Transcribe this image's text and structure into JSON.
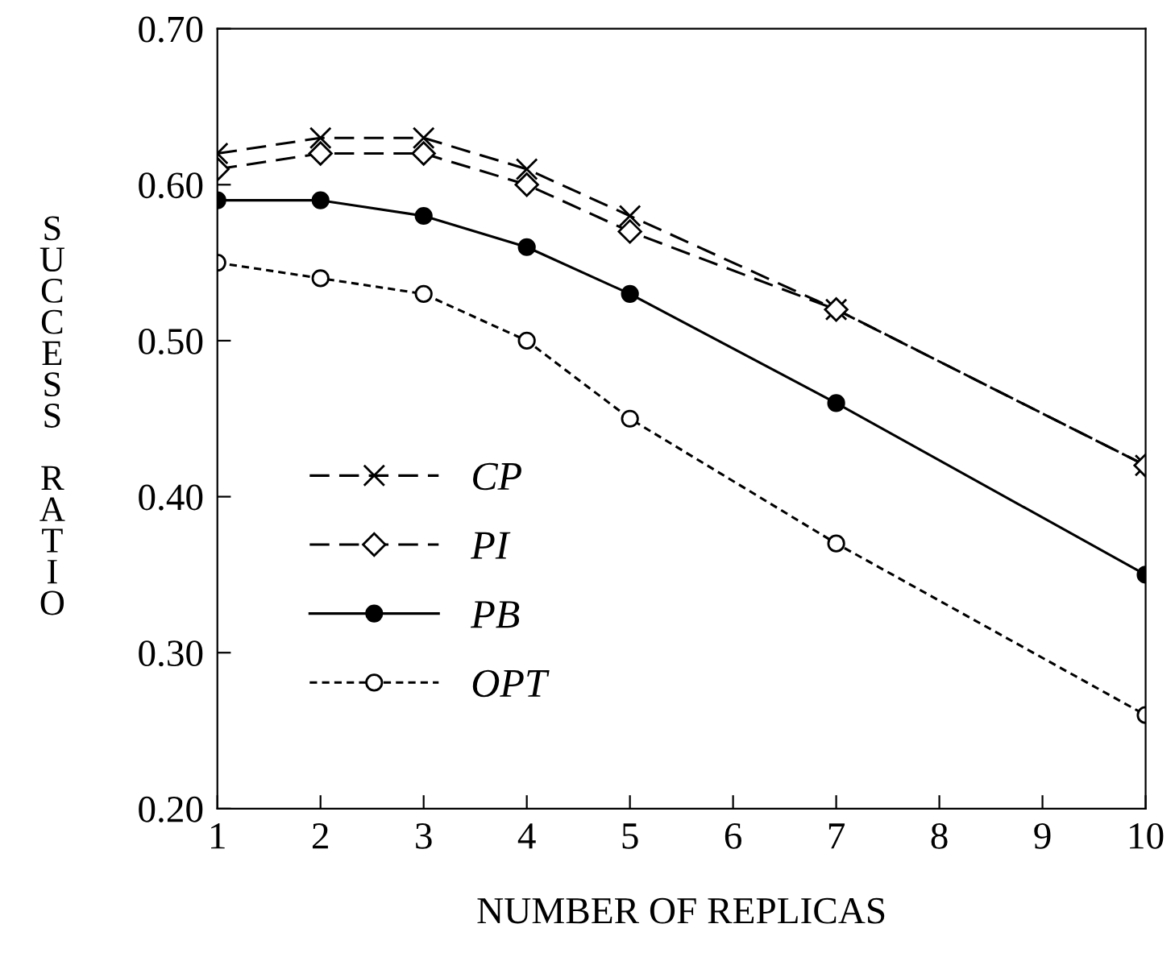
{
  "chart_data": {
    "type": "line",
    "xlabel": "NUMBER OF REPLICAS",
    "ylabel": "SUCCESS RATIO",
    "xlim": [
      1,
      10
    ],
    "xticks": [
      1,
      2,
      3,
      4,
      5,
      6,
      7,
      8,
      9,
      10
    ],
    "ylim": [
      0.2,
      0.7
    ],
    "yticks": [
      {
        "value": 0.2,
        "label": "0.20"
      },
      {
        "value": 0.3,
        "label": "0.30"
      },
      {
        "value": 0.4,
        "label": "0.40"
      },
      {
        "value": 0.5,
        "label": "0.50"
      },
      {
        "value": 0.6,
        "label": "0.60"
      },
      {
        "value": 0.7,
        "label": "0.70"
      }
    ],
    "x": [
      1,
      2,
      3,
      4,
      5,
      7,
      10
    ],
    "series": [
      {
        "name": "CP",
        "color": "#000000",
        "marker": "cross",
        "line_style": "dashed",
        "values": [
          0.62,
          0.63,
          0.63,
          0.61,
          0.58,
          0.52,
          0.42
        ]
      },
      {
        "name": "PI",
        "color": "#000000",
        "marker": "diamond",
        "line_style": "dashed",
        "values": [
          0.61,
          0.62,
          0.62,
          0.6,
          0.57,
          0.52,
          0.42
        ]
      },
      {
        "name": "PB",
        "color": "#000000",
        "marker": "circle",
        "line_style": "solid",
        "values": [
          0.59,
          0.59,
          0.58,
          0.56,
          0.53,
          0.46,
          0.35
        ]
      },
      {
        "name": "OPT",
        "color": "#000000",
        "marker": "circle",
        "line_style": "dotted",
        "values": [
          0.55,
          0.54,
          0.53,
          0.5,
          0.45,
          0.37,
          0.26
        ]
      }
    ],
    "grid": false,
    "legend": "bottom left"
  }
}
